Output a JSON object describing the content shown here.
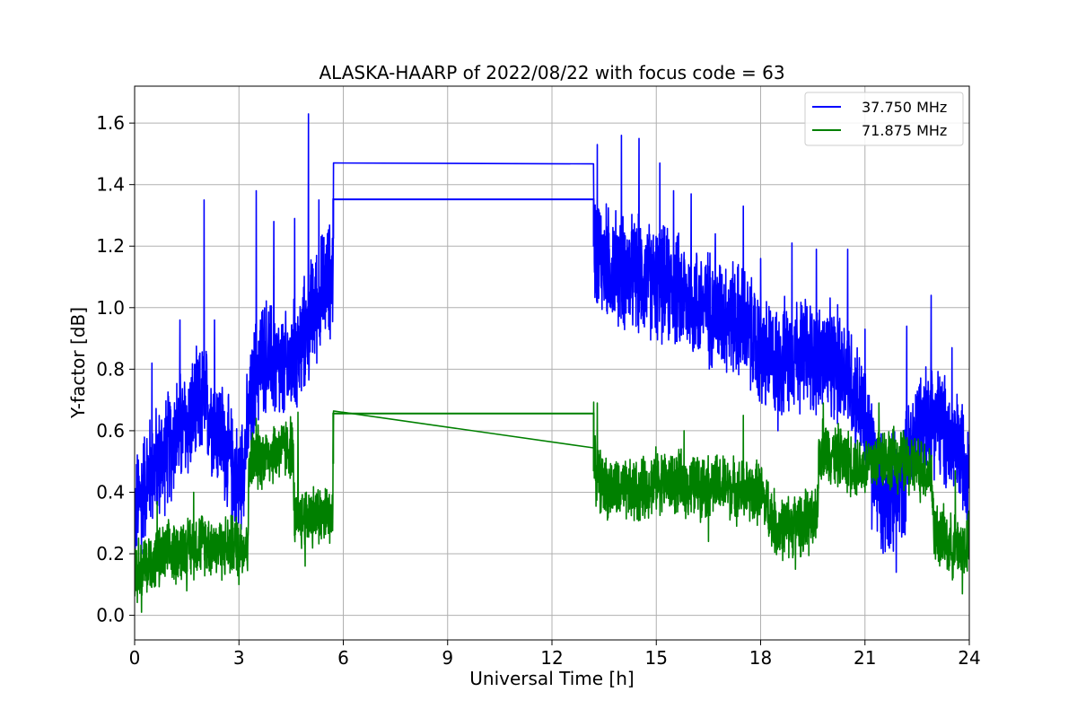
{
  "chart_data": {
    "type": "line",
    "title": "ALASKA-HAARP of 2022/08/22 with focus code = 63",
    "xlabel": "Universal Time [h]",
    "ylabel": "Y-factor [dB]",
    "xlim": [
      0,
      24
    ],
    "ylim": [
      -0.08,
      1.72
    ],
    "xticks": [
      0,
      3,
      6,
      9,
      12,
      15,
      18,
      21,
      24
    ],
    "xtick_labels": [
      "0",
      "3",
      "6",
      "9",
      "12",
      "15",
      "18",
      "21",
      "24"
    ],
    "yticks": [
      0.0,
      0.2,
      0.4,
      0.6,
      0.8,
      1.0,
      1.2,
      1.4,
      1.6
    ],
    "ytick_labels": [
      "0.0",
      "0.2",
      "0.4",
      "0.6",
      "0.8",
      "1.0",
      "1.2",
      "1.4",
      "1.6"
    ],
    "grid": true,
    "legend_position": "top-right",
    "series": [
      {
        "name": "37.750 MHz",
        "color": "#0000ff",
        "points": [
          [
            0,
            0.32
          ],
          [
            0.25,
            0.42
          ],
          [
            0.5,
            0.48
          ],
          [
            0.75,
            0.5
          ],
          [
            1,
            0.55
          ],
          [
            1.25,
            0.6
          ],
          [
            1.5,
            0.62
          ],
          [
            1.75,
            0.66
          ],
          [
            2,
            0.7
          ],
          [
            2.25,
            0.64
          ],
          [
            2.5,
            0.58
          ],
          [
            2.75,
            0.5
          ],
          [
            3,
            0.42
          ],
          [
            3.25,
            0.6
          ],
          [
            3.5,
            0.8
          ],
          [
            3.75,
            0.85
          ],
          [
            4,
            0.82
          ],
          [
            4.25,
            0.78
          ],
          [
            4.5,
            0.82
          ],
          [
            4.75,
            0.86
          ],
          [
            5,
            0.95
          ],
          [
            5.25,
            1.02
          ],
          [
            5.5,
            1.08
          ],
          [
            5.7,
            1.1
          ],
          [
            5.71,
            1.35
          ],
          [
            13.2,
            1.355
          ],
          [
            13.21,
            1.2
          ],
          [
            13.5,
            1.15
          ],
          [
            14,
            1.12
          ],
          [
            14.5,
            1.1
          ],
          [
            15,
            1.08
          ],
          [
            15.5,
            1.06
          ],
          [
            16,
            1.02
          ],
          [
            16.5,
            1.0
          ],
          [
            17,
            0.98
          ],
          [
            17.5,
            0.95
          ],
          [
            18,
            0.85
          ],
          [
            18.5,
            0.82
          ],
          [
            19,
            0.86
          ],
          [
            19.5,
            0.84
          ],
          [
            20,
            0.82
          ],
          [
            20.5,
            0.8
          ],
          [
            21,
            0.62
          ],
          [
            21.5,
            0.38
          ],
          [
            22,
            0.4
          ],
          [
            22.5,
            0.62
          ],
          [
            23,
            0.65
          ],
          [
            23.5,
            0.55
          ],
          [
            24,
            0.5
          ]
        ],
        "noise_amplitude": 0.22,
        "spikes": [
          [
            0.5,
            0.82
          ],
          [
            1.3,
            0.96
          ],
          [
            2.0,
            1.35
          ],
          [
            2.3,
            0.96
          ],
          [
            3.5,
            1.38
          ],
          [
            4.0,
            1.28
          ],
          [
            4.6,
            1.29
          ],
          [
            5.0,
            1.63
          ],
          [
            5.3,
            1.35
          ],
          [
            13.3,
            1.53
          ],
          [
            14.0,
            1.56
          ],
          [
            14.5,
            1.55
          ],
          [
            15.1,
            1.47
          ],
          [
            15.5,
            1.38
          ],
          [
            16.0,
            1.37
          ],
          [
            16.7,
            1.24
          ],
          [
            17.5,
            1.33
          ],
          [
            18.0,
            1.16
          ],
          [
            18.9,
            1.21
          ],
          [
            19.6,
            1.19
          ],
          [
            20.5,
            1.19
          ],
          [
            21.0,
            0.93
          ],
          [
            22.2,
            0.94
          ],
          [
            22.9,
            1.04
          ],
          [
            23.5,
            0.87
          ]
        ],
        "dips": [
          [
            0.2,
            0.2
          ],
          [
            2.8,
            0.25
          ],
          [
            16.8,
            0.85
          ],
          [
            18.5,
            0.6
          ],
          [
            21.2,
            0.28
          ],
          [
            21.9,
            0.14
          ]
        ]
      },
      {
        "name": "71.875 MHz",
        "color": "#008000",
        "points": [
          [
            0,
            0.15
          ],
          [
            0.5,
            0.17
          ],
          [
            1,
            0.2
          ],
          [
            1.5,
            0.22
          ],
          [
            2,
            0.24
          ],
          [
            2.5,
            0.22
          ],
          [
            3,
            0.23
          ],
          [
            3.25,
            0.23
          ],
          [
            3.3,
            0.5
          ],
          [
            3.75,
            0.52
          ],
          [
            4.25,
            0.54
          ],
          [
            4.55,
            0.55
          ],
          [
            4.6,
            0.3
          ],
          [
            5,
            0.33
          ],
          [
            5.5,
            0.32
          ],
          [
            5.7,
            0.33
          ],
          [
            5.71,
            0.655
          ],
          [
            13.2,
            0.657
          ],
          [
            13.21,
            0.47
          ],
          [
            13.5,
            0.42
          ],
          [
            14,
            0.4
          ],
          [
            14.5,
            0.4
          ],
          [
            15,
            0.44
          ],
          [
            15.5,
            0.43
          ],
          [
            16,
            0.42
          ],
          [
            16.5,
            0.42
          ],
          [
            17,
            0.42
          ],
          [
            17.5,
            0.4
          ],
          [
            18,
            0.4
          ],
          [
            18.5,
            0.28
          ],
          [
            19,
            0.3
          ],
          [
            19.6,
            0.3
          ],
          [
            19.7,
            0.55
          ],
          [
            20,
            0.53
          ],
          [
            20.5,
            0.5
          ],
          [
            21,
            0.48
          ],
          [
            21.5,
            0.52
          ],
          [
            22,
            0.5
          ],
          [
            22.5,
            0.48
          ],
          [
            22.9,
            0.47
          ],
          [
            23,
            0.27
          ],
          [
            23.5,
            0.22
          ],
          [
            24,
            0.23
          ]
        ],
        "noise_amplitude": 0.12,
        "spikes": [
          [
            0.65,
            0.37
          ],
          [
            1.7,
            0.4
          ],
          [
            3.5,
            0.64
          ],
          [
            4.7,
            0.66
          ],
          [
            13.3,
            0.69
          ],
          [
            15.8,
            0.6
          ],
          [
            17.5,
            0.65
          ],
          [
            19.8,
            0.69
          ],
          [
            21.4,
            0.69
          ],
          [
            23.6,
            0.47
          ]
        ],
        "dips": [
          [
            0.2,
            0.01
          ],
          [
            1.5,
            0.08
          ],
          [
            3.0,
            0.1
          ],
          [
            4.9,
            0.16
          ],
          [
            16.5,
            0.24
          ],
          [
            19.0,
            0.15
          ],
          [
            23.8,
            0.07
          ]
        ]
      }
    ]
  }
}
